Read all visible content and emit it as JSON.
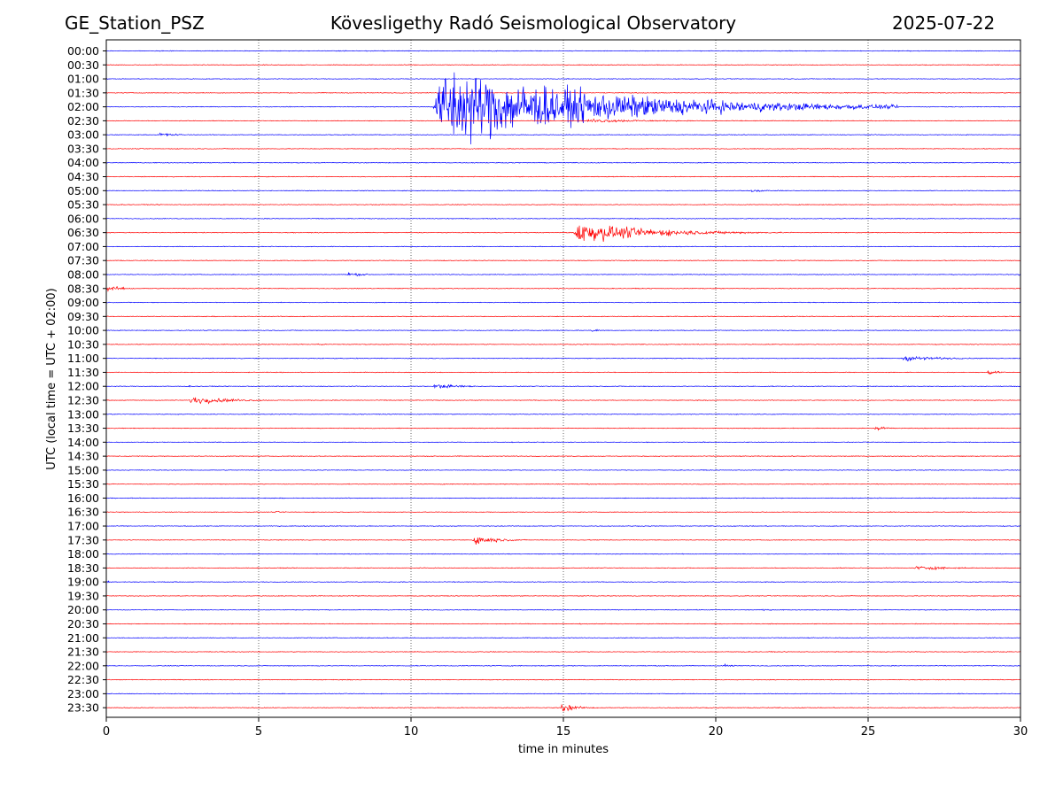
{
  "header": {
    "station": "GE_Station_PSZ",
    "observatory": "Kövesligethy Radó Seismological Observatory",
    "date": "2025-07-22"
  },
  "colors": {
    "trace_a": "#0000ff",
    "trace_b": "#ff0000",
    "grid": "#000000"
  },
  "chart_data": {
    "type": "line",
    "title": "Kövesligethy Radó Seismological Observatory",
    "xlabel": "time in minutes",
    "ylabel": "UTC (local time = UTC + 02:00)",
    "xlim": [
      0,
      30
    ],
    "xticks": [
      0,
      5,
      10,
      15,
      20,
      25,
      30
    ],
    "vertical_grid": "dotted",
    "row_labels": [
      "00:00",
      "00:30",
      "01:00",
      "01:30",
      "02:00",
      "02:30",
      "03:00",
      "03:30",
      "04:00",
      "04:30",
      "05:00",
      "05:30",
      "06:00",
      "06:30",
      "07:00",
      "07:30",
      "08:00",
      "08:30",
      "09:00",
      "09:30",
      "10:00",
      "10:30",
      "11:00",
      "11:30",
      "12:00",
      "12:30",
      "13:00",
      "13:30",
      "14:00",
      "14:30",
      "15:00",
      "15:30",
      "16:00",
      "16:30",
      "17:00",
      "17:30",
      "18:00",
      "18:30",
      "19:00",
      "19:30",
      "20:00",
      "20:30",
      "21:00",
      "21:30",
      "22:00",
      "22:30",
      "23:00",
      "23:30"
    ],
    "row_colors": [
      "blue",
      "red"
    ],
    "events": [
      {
        "row": "02:00",
        "start_min": 10.7,
        "end_min": 26,
        "peak_amp_rows": 4.5,
        "kind": "teleseism"
      },
      {
        "row": "02:30",
        "start_min": 15.7,
        "end_min": 22.5,
        "peak_amp_rows": 0.2
      },
      {
        "row": "03:00",
        "start_min": 1.7,
        "end_min": 3.5,
        "peak_amp_rows": 0.25
      },
      {
        "row": "05:00",
        "start_min": 21.1,
        "end_min": 22.5,
        "peak_amp_rows": 0.2
      },
      {
        "row": "06:30",
        "start_min": 15.3,
        "end_min": 22.5,
        "peak_amp_rows": 1.2
      },
      {
        "row": "08:00",
        "start_min": 7.9,
        "end_min": 9.5,
        "peak_amp_rows": 0.25
      },
      {
        "row": "08:00",
        "start_min": 29.9,
        "end_min": 30,
        "peak_amp_rows": 0.6
      },
      {
        "row": "08:30",
        "start_min": 0.0,
        "end_min": 1.5,
        "peak_amp_rows": 0.35
      },
      {
        "row": "10:00",
        "start_min": 15.9,
        "end_min": 16.6,
        "peak_amp_rows": 0.25
      },
      {
        "row": "10:30",
        "start_min": 6.9,
        "end_min": 7.6,
        "peak_amp_rows": 0.15
      },
      {
        "row": "11:00",
        "start_min": 26.1,
        "end_min": 30,
        "peak_amp_rows": 0.3
      },
      {
        "row": "11:30",
        "start_min": 28.9,
        "end_min": 30,
        "peak_amp_rows": 0.3
      },
      {
        "row": "12:00",
        "start_min": 10.7,
        "end_min": 14,
        "peak_amp_rows": 0.25
      },
      {
        "row": "12:00",
        "start_min": 2.6,
        "end_min": 3.5,
        "peak_amp_rows": 0.1
      },
      {
        "row": "12:30",
        "start_min": 2.7,
        "end_min": 6.5,
        "peak_amp_rows": 0.45
      },
      {
        "row": "13:30",
        "start_min": 25.2,
        "end_min": 27,
        "peak_amp_rows": 0.2
      },
      {
        "row": "16:30",
        "start_min": 5.5,
        "end_min": 7.2,
        "peak_amp_rows": 0.1
      },
      {
        "row": "17:30",
        "start_min": 12.0,
        "end_min": 14.3,
        "peak_amp_rows": 0.55
      },
      {
        "row": "18:30",
        "start_min": 26.5,
        "end_min": 30,
        "peak_amp_rows": 0.25
      },
      {
        "row": "19:00",
        "start_min": 0.0,
        "end_min": 0.5,
        "peak_amp_rows": 0.15
      },
      {
        "row": "20:00",
        "start_min": 21.5,
        "end_min": 23,
        "peak_amp_rows": 0.1
      },
      {
        "row": "22:00",
        "start_min": 20.2,
        "end_min": 21.4,
        "peak_amp_rows": 0.2
      },
      {
        "row": "23:30",
        "start_min": 14.9,
        "end_min": 16.5,
        "peak_amp_rows": 0.45
      }
    ]
  }
}
